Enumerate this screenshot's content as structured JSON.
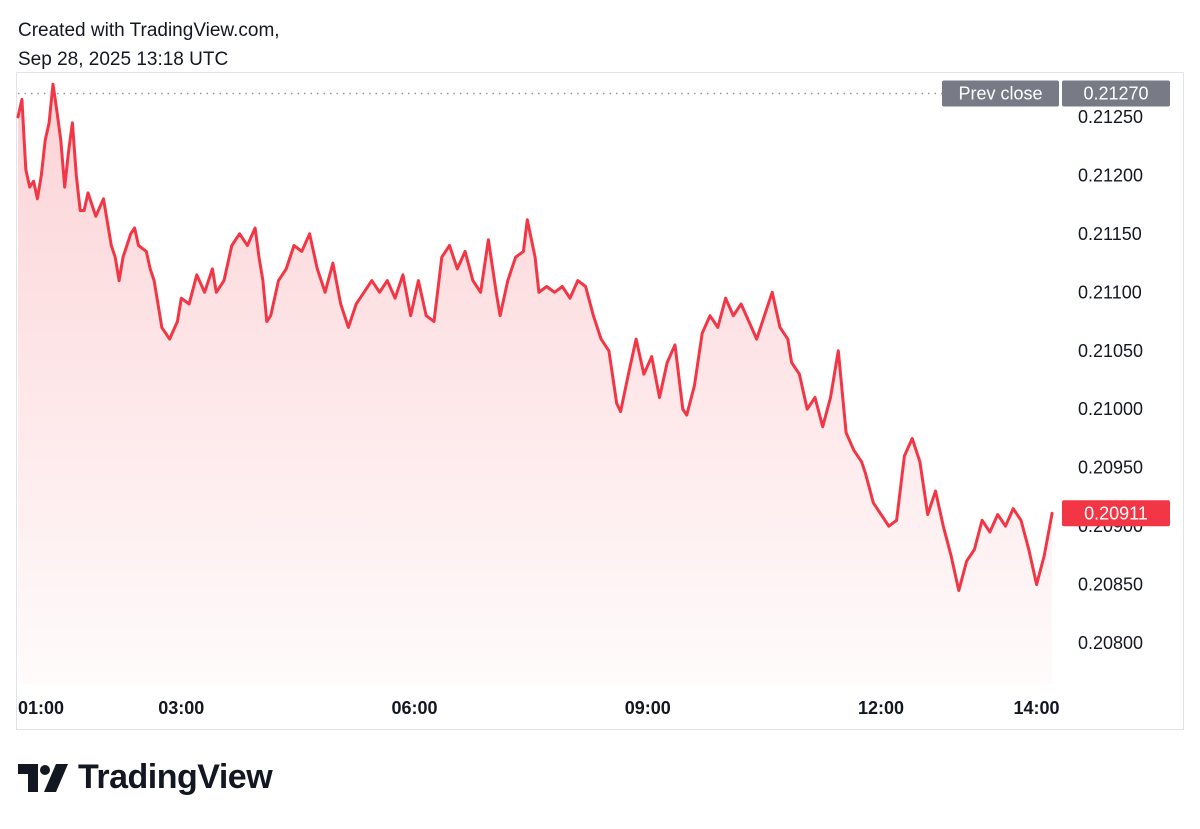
{
  "header": {
    "line1": "Created with TradingView.com,",
    "line2": "Sep 28, 2025 13:18 UTC"
  },
  "brand": {
    "name": "TradingView",
    "logo_icon": "tradingview-logo-icon"
  },
  "colors": {
    "line": "#F23645",
    "fill_top": "#F23645",
    "prev_close_badge": "#787B86",
    "last_price_badge": "#F23645",
    "border": "#E0E3EB"
  },
  "chart_data": {
    "type": "area",
    "x_unit": "hours UTC",
    "x_range": [
      0.9,
      14.25
    ],
    "ylim": [
      0.20765,
      0.21285
    ],
    "y_ticks": [
      "0.20800",
      "0.20850",
      "0.20900",
      "0.20950",
      "0.21000",
      "0.21050",
      "0.21100",
      "0.21150",
      "0.21200",
      "0.21250"
    ],
    "x_ticks": [
      {
        "label": "01:00",
        "x": 1
      },
      {
        "label": "03:00",
        "x": 3
      },
      {
        "label": "06:00",
        "x": 6
      },
      {
        "label": "09:00",
        "x": 9
      },
      {
        "label": "12:00",
        "x": 12
      },
      {
        "label": "14:00",
        "x": 14
      }
    ],
    "prev_close": {
      "label": "Prev close",
      "value": 0.2127,
      "text": "0.21270"
    },
    "last_price": {
      "value": 0.20911,
      "text": "0.20911"
    },
    "points": [
      [
        0.9,
        0.2125
      ],
      [
        0.95,
        0.21265
      ],
      [
        1.0,
        0.21205
      ],
      [
        1.05,
        0.2119
      ],
      [
        1.1,
        0.21195
      ],
      [
        1.15,
        0.2118
      ],
      [
        1.2,
        0.212
      ],
      [
        1.25,
        0.2123
      ],
      [
        1.3,
        0.21245
      ],
      [
        1.35,
        0.21278
      ],
      [
        1.4,
        0.21255
      ],
      [
        1.45,
        0.2123
      ],
      [
        1.5,
        0.2119
      ],
      [
        1.55,
        0.2122
      ],
      [
        1.6,
        0.21245
      ],
      [
        1.65,
        0.212
      ],
      [
        1.7,
        0.2117
      ],
      [
        1.75,
        0.2117
      ],
      [
        1.8,
        0.21185
      ],
      [
        1.9,
        0.21165
      ],
      [
        2.0,
        0.2118
      ],
      [
        2.05,
        0.2116
      ],
      [
        2.1,
        0.2114
      ],
      [
        2.15,
        0.2113
      ],
      [
        2.2,
        0.2111
      ],
      [
        2.25,
        0.2113
      ],
      [
        2.3,
        0.2114
      ],
      [
        2.35,
        0.2115
      ],
      [
        2.4,
        0.21155
      ],
      [
        2.45,
        0.2114
      ],
      [
        2.55,
        0.21135
      ],
      [
        2.6,
        0.2112
      ],
      [
        2.65,
        0.2111
      ],
      [
        2.7,
        0.2109
      ],
      [
        2.75,
        0.2107
      ],
      [
        2.85,
        0.2106
      ],
      [
        2.95,
        0.21075
      ],
      [
        3.0,
        0.21095
      ],
      [
        3.1,
        0.2109
      ],
      [
        3.2,
        0.21115
      ],
      [
        3.3,
        0.211
      ],
      [
        3.4,
        0.2112
      ],
      [
        3.45,
        0.211
      ],
      [
        3.55,
        0.2111
      ],
      [
        3.65,
        0.2114
      ],
      [
        3.75,
        0.2115
      ],
      [
        3.85,
        0.2114
      ],
      [
        3.95,
        0.21155
      ],
      [
        4.0,
        0.2113
      ],
      [
        4.05,
        0.2111
      ],
      [
        4.1,
        0.21075
      ],
      [
        4.15,
        0.2108
      ],
      [
        4.25,
        0.2111
      ],
      [
        4.35,
        0.2112
      ],
      [
        4.45,
        0.2114
      ],
      [
        4.55,
        0.21135
      ],
      [
        4.65,
        0.2115
      ],
      [
        4.75,
        0.2112
      ],
      [
        4.85,
        0.211
      ],
      [
        4.95,
        0.21125
      ],
      [
        5.05,
        0.2109
      ],
      [
        5.15,
        0.2107
      ],
      [
        5.25,
        0.2109
      ],
      [
        5.35,
        0.211
      ],
      [
        5.45,
        0.2111
      ],
      [
        5.55,
        0.211
      ],
      [
        5.65,
        0.2111
      ],
      [
        5.75,
        0.21095
      ],
      [
        5.85,
        0.21115
      ],
      [
        5.95,
        0.2108
      ],
      [
        6.05,
        0.2111
      ],
      [
        6.15,
        0.2108
      ],
      [
        6.25,
        0.21075
      ],
      [
        6.35,
        0.2113
      ],
      [
        6.45,
        0.2114
      ],
      [
        6.55,
        0.2112
      ],
      [
        6.65,
        0.21135
      ],
      [
        6.75,
        0.2111
      ],
      [
        6.85,
        0.211
      ],
      [
        6.95,
        0.21145
      ],
      [
        7.05,
        0.211
      ],
      [
        7.1,
        0.2108
      ],
      [
        7.2,
        0.2111
      ],
      [
        7.3,
        0.2113
      ],
      [
        7.4,
        0.21135
      ],
      [
        7.45,
        0.21162
      ],
      [
        7.55,
        0.2113
      ],
      [
        7.6,
        0.211
      ],
      [
        7.7,
        0.21105
      ],
      [
        7.8,
        0.211
      ],
      [
        7.9,
        0.21105
      ],
      [
        8.0,
        0.21095
      ],
      [
        8.1,
        0.2111
      ],
      [
        8.2,
        0.21105
      ],
      [
        8.3,
        0.2108
      ],
      [
        8.4,
        0.2106
      ],
      [
        8.5,
        0.2105
      ],
      [
        8.6,
        0.21005
      ],
      [
        8.65,
        0.20998
      ],
      [
        8.75,
        0.2103
      ],
      [
        8.85,
        0.2106
      ],
      [
        8.95,
        0.2103
      ],
      [
        9.05,
        0.21045
      ],
      [
        9.15,
        0.2101
      ],
      [
        9.25,
        0.2104
      ],
      [
        9.35,
        0.21055
      ],
      [
        9.45,
        0.21
      ],
      [
        9.5,
        0.20995
      ],
      [
        9.6,
        0.2102
      ],
      [
        9.7,
        0.21065
      ],
      [
        9.8,
        0.2108
      ],
      [
        9.9,
        0.2107
      ],
      [
        10.0,
        0.21095
      ],
      [
        10.1,
        0.2108
      ],
      [
        10.2,
        0.2109
      ],
      [
        10.3,
        0.21075
      ],
      [
        10.4,
        0.2106
      ],
      [
        10.5,
        0.2108
      ],
      [
        10.6,
        0.211
      ],
      [
        10.7,
        0.2107
      ],
      [
        10.8,
        0.2106
      ],
      [
        10.85,
        0.2104
      ],
      [
        10.95,
        0.2103
      ],
      [
        11.05,
        0.21
      ],
      [
        11.15,
        0.2101
      ],
      [
        11.25,
        0.20985
      ],
      [
        11.35,
        0.2101
      ],
      [
        11.45,
        0.2105
      ],
      [
        11.55,
        0.2098
      ],
      [
        11.65,
        0.20965
      ],
      [
        11.75,
        0.20955
      ],
      [
        11.8,
        0.20945
      ],
      [
        11.9,
        0.2092
      ],
      [
        12.0,
        0.2091
      ],
      [
        12.1,
        0.209
      ],
      [
        12.2,
        0.20905
      ],
      [
        12.3,
        0.2096
      ],
      [
        12.4,
        0.20975
      ],
      [
        12.5,
        0.20955
      ],
      [
        12.6,
        0.2091
      ],
      [
        12.7,
        0.2093
      ],
      [
        12.8,
        0.209
      ],
      [
        12.9,
        0.20875
      ],
      [
        13.0,
        0.20845
      ],
      [
        13.1,
        0.2087
      ],
      [
        13.2,
        0.2088
      ],
      [
        13.3,
        0.20905
      ],
      [
        13.4,
        0.20895
      ],
      [
        13.5,
        0.2091
      ],
      [
        13.6,
        0.209
      ],
      [
        13.7,
        0.20915
      ],
      [
        13.8,
        0.20905
      ],
      [
        13.9,
        0.2088
      ],
      [
        14.0,
        0.2085
      ],
      [
        14.1,
        0.20875
      ],
      [
        14.2,
        0.20911
      ]
    ]
  }
}
